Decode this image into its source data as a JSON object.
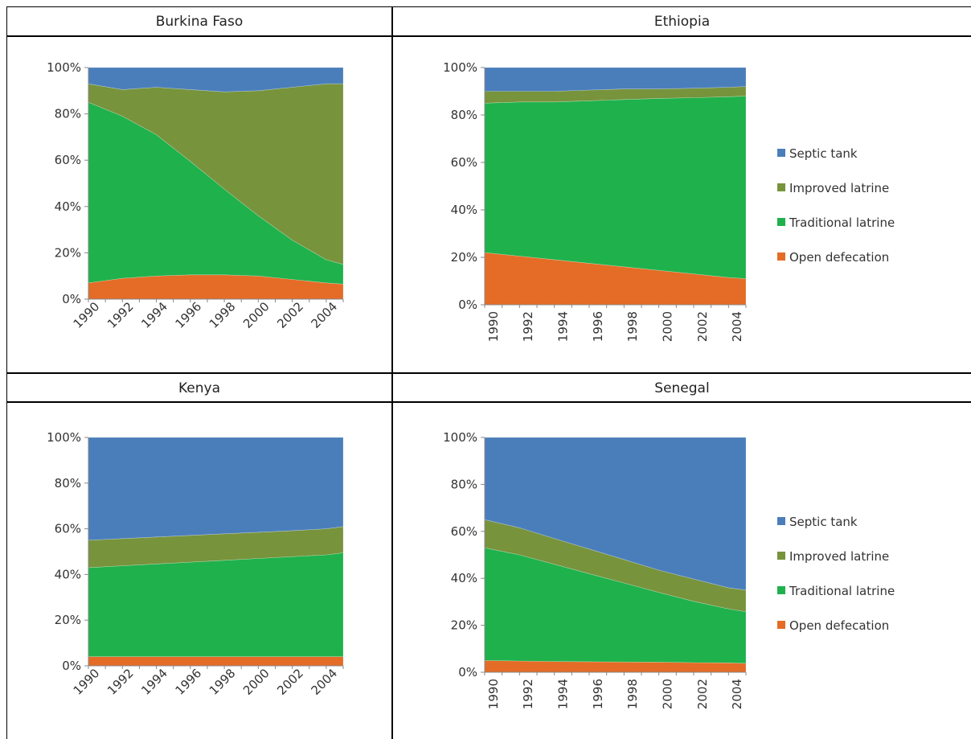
{
  "colors": {
    "septic_tank": "#4a7ebb",
    "improved_latrine": "#77933c",
    "traditional_latrine": "#1fb14c",
    "open_defecation": "#e46c26"
  },
  "legend": [
    "Septic tank",
    "Improved latrine",
    "Traditional latrine",
    "Open defecation"
  ],
  "chart_data": [
    {
      "type": "area",
      "stacked": true,
      "title": "Burkina Faso",
      "x": [
        1990,
        1992,
        1994,
        1996,
        1998,
        2000,
        2002,
        2004,
        2005
      ],
      "x_tick_labels": [
        "1990",
        "1992",
        "1994",
        "1996",
        "1998",
        "2000",
        "2002",
        "2004"
      ],
      "x_label_orientation": "diagonal",
      "y_tick_labels": [
        "0%",
        "20%",
        "40%",
        "60%",
        "80%",
        "100%"
      ],
      "ylim": [
        0,
        100
      ],
      "legend": "none",
      "series": [
        {
          "name": "Open defecation",
          "values": [
            7,
            9,
            10,
            10.5,
            10.5,
            10,
            8.5,
            7,
            6.5
          ]
        },
        {
          "name": "Traditional latrine",
          "values": [
            78,
            70,
            61,
            49,
            37,
            26,
            17,
            10,
            8.5
          ]
        },
        {
          "name": "Improved latrine",
          "values": [
            8,
            11.5,
            20.5,
            31,
            42,
            54,
            66,
            76,
            78
          ]
        },
        {
          "name": "Septic tank",
          "values": [
            7,
            9.5,
            8.5,
            9.5,
            10.5,
            10,
            8.5,
            7,
            7
          ]
        }
      ]
    },
    {
      "type": "area",
      "stacked": true,
      "title": "Ethiopia",
      "x": [
        1990,
        1992,
        1994,
        1996,
        1998,
        2000,
        2002,
        2004,
        2005
      ],
      "x_tick_labels": [
        "1990",
        "1992",
        "1994",
        "1996",
        "1998",
        "2000",
        "2002",
        "2004"
      ],
      "x_label_orientation": "vertical",
      "y_tick_labels": [
        "0%",
        "20%",
        "40%",
        "60%",
        "80%",
        "100%"
      ],
      "ylim": [
        0,
        100
      ],
      "legend": "right",
      "series": [
        {
          "name": "Open defecation",
          "values": [
            22,
            20.5,
            19,
            17.5,
            16,
            14.5,
            13,
            11.5,
            11
          ]
        },
        {
          "name": "Traditional latrine",
          "values": [
            63,
            65,
            66.5,
            68.5,
            70.5,
            72.5,
            74.3,
            76.2,
            77
          ]
        },
        {
          "name": "Improved latrine",
          "values": [
            5,
            4.5,
            4.5,
            4.5,
            4.5,
            4,
            4,
            4,
            4
          ]
        },
        {
          "name": "Septic tank",
          "values": [
            10,
            10,
            10,
            9.5,
            9,
            9,
            8.7,
            8.3,
            8
          ]
        }
      ]
    },
    {
      "type": "area",
      "stacked": true,
      "title": "Kenya",
      "x": [
        1990,
        1992,
        1994,
        1996,
        1998,
        2000,
        2002,
        2004,
        2005
      ],
      "x_tick_labels": [
        "1990",
        "1992",
        "1994",
        "1996",
        "1998",
        "2000",
        "2002",
        "2004"
      ],
      "x_label_orientation": "diagonal",
      "y_tick_labels": [
        "0%",
        "20%",
        "40%",
        "60%",
        "80%",
        "100%"
      ],
      "ylim": [
        0,
        100
      ],
      "legend": "none",
      "series": [
        {
          "name": "Open defecation",
          "values": [
            4,
            4,
            4,
            4,
            4,
            4,
            4,
            4,
            4
          ]
        },
        {
          "name": "Traditional latrine",
          "values": [
            39,
            39.8,
            40.6,
            41.4,
            42.2,
            43,
            43.8,
            44.6,
            45.5
          ]
        },
        {
          "name": "Improved latrine",
          "values": [
            12,
            11.9,
            11.8,
            11.7,
            11.6,
            11.5,
            11.4,
            11.4,
            11.5
          ]
        },
        {
          "name": "Septic tank",
          "values": [
            45,
            44.3,
            43.6,
            42.9,
            42.2,
            41.5,
            40.8,
            40,
            39
          ]
        }
      ]
    },
    {
      "type": "area",
      "stacked": true,
      "title": "Senegal",
      "x": [
        1990,
        1992,
        1994,
        1996,
        1998,
        2000,
        2002,
        2004,
        2005
      ],
      "x_tick_labels": [
        "1990",
        "1992",
        "1994",
        "1996",
        "1998",
        "2000",
        "2002",
        "2004"
      ],
      "x_label_orientation": "vertical",
      "y_tick_labels": [
        "0%",
        "20%",
        "40%",
        "60%",
        "80%",
        "100%"
      ],
      "ylim": [
        0,
        100
      ],
      "legend": "right",
      "series": [
        {
          "name": "Open defecation",
          "values": [
            5,
            4.8,
            4.6,
            4.5,
            4.4,
            4.3,
            4.1,
            4,
            3.8
          ]
        },
        {
          "name": "Traditional latrine",
          "values": [
            48,
            45.2,
            41.4,
            37.5,
            33.6,
            29.7,
            26.1,
            23,
            22
          ]
        },
        {
          "name": "Improved latrine",
          "values": [
            12,
            11.5,
            11,
            10.5,
            10,
            9.5,
            9.5,
            9,
            9.2
          ]
        },
        {
          "name": "Septic tank",
          "values": [
            35,
            38.5,
            43,
            47.5,
            52,
            56.5,
            60.3,
            64,
            65
          ]
        }
      ]
    }
  ]
}
